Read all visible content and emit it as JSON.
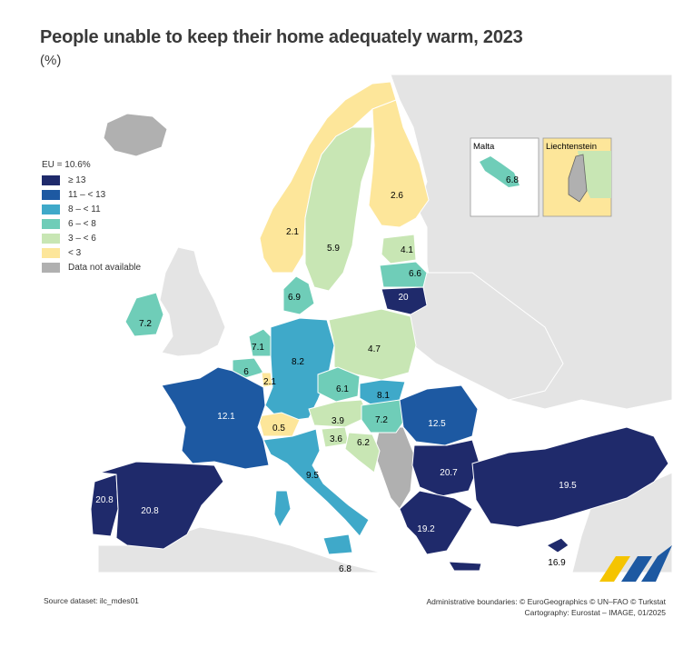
{
  "title": "People unable to keep their home adequately warm, 2023",
  "subtitle": "(%)",
  "legend": {
    "heading": "EU = 10.6%",
    "classes": [
      {
        "label": "≥ 13",
        "color": "#1f2a6b"
      },
      {
        "label": "11 – < 13",
        "color": "#1d59a2"
      },
      {
        "label": "8 – < 11",
        "color": "#3fa9c9"
      },
      {
        "label": "6 – < 8",
        "color": "#6fcdb8"
      },
      {
        "label": "3 – < 6",
        "color": "#c8e6b4"
      },
      {
        "label": "< 3",
        "color": "#fde69a"
      },
      {
        "label": "Data not available",
        "color": "#b0b0b0"
      }
    ]
  },
  "insets": {
    "malta": "Malta",
    "liechtenstein": "Liechtenstein"
  },
  "countries": {
    "norway": "2.1",
    "sweden": "5.9",
    "finland": "2.6",
    "estonia": "4.1",
    "latvia": "6.6",
    "lithuania": "20",
    "denmark": "6.9",
    "ireland": "7.2",
    "netherlands": "7.1",
    "belgium": "6",
    "luxembourg": "2.1",
    "germany": "8.2",
    "poland": "4.7",
    "czechia": "6.1",
    "slovakia": "8.1",
    "austria": "3.9",
    "hungary": "7.2",
    "romania": "12.5",
    "slovenia": "3.6",
    "croatia": "6.2",
    "switzerland": "0.5",
    "france": "12.1",
    "italy": "9.5",
    "malta_island": "6.8",
    "portugal": "20.8",
    "spain": "20.8",
    "bulgaria": "20.7",
    "greece": "19.2",
    "turkey": "19.5",
    "cyprus": "16.9",
    "malta_inset": "6.8"
  },
  "footer": {
    "source": "Source dataset: ilc_mdes01",
    "boundaries": "Administrative boundaries: © EuroGeographics © UN–FAO © Turkstat",
    "cartography": "Cartography: Eurostat – IMAGE, 01/2025"
  }
}
